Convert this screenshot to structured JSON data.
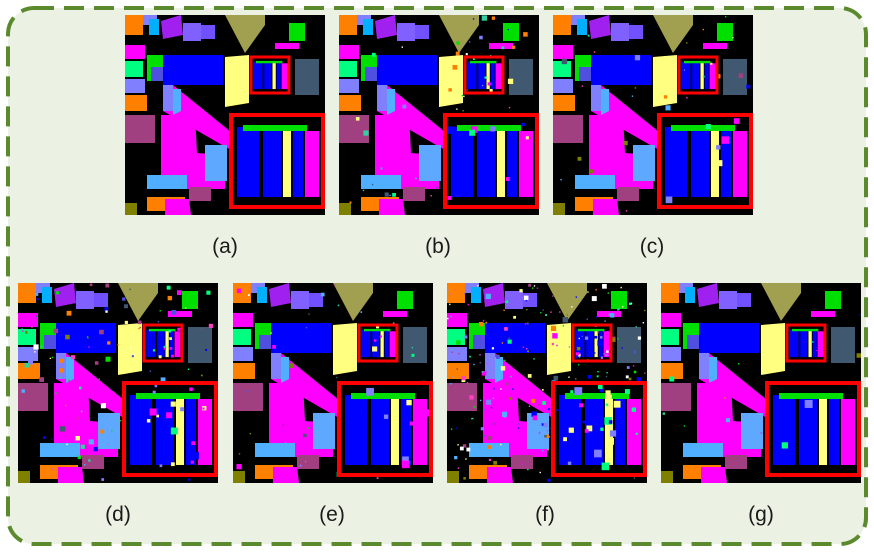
{
  "figure": {
    "border_color": "#5b8a2e",
    "background_color": "#ebf1e3",
    "highlight_color": "#ff0000",
    "panels": [
      {
        "id": "a",
        "label": "(a)",
        "noise": 0.0,
        "pepper": 0.0,
        "spill": 0.0
      },
      {
        "id": "b",
        "label": "(b)",
        "noise": 0.03,
        "pepper": 0.02,
        "spill": 0.25
      },
      {
        "id": "c",
        "label": "(c)",
        "noise": 0.015,
        "pepper": 0.01,
        "spill": 0.15
      },
      {
        "id": "d",
        "label": "(d)",
        "noise": 0.07,
        "pepper": 0.05,
        "spill": 0.45
      },
      {
        "id": "e",
        "label": "(e)",
        "noise": 0.02,
        "pepper": 0.015,
        "spill": 0.2
      },
      {
        "id": "f",
        "label": "(f)",
        "noise": 0.14,
        "pepper": 0.12,
        "spill": 0.7
      },
      {
        "id": "g",
        "label": "(g)",
        "noise": 0.01,
        "pepper": 0.005,
        "spill": 0.1
      }
    ]
  }
}
